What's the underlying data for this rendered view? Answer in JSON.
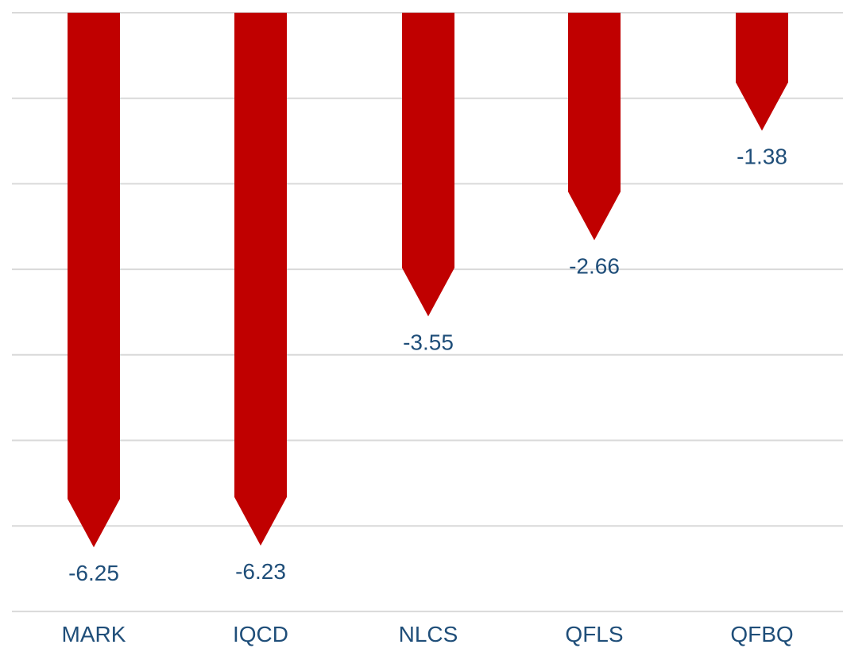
{
  "chart_data": {
    "type": "bar",
    "orientation": "vertical",
    "categories": [
      "MARK",
      "IQCD",
      "NLCS",
      "QFLS",
      "QFBQ"
    ],
    "values": [
      -6.25,
      -6.23,
      -3.55,
      -2.66,
      -1.38
    ],
    "data_labels": [
      "-6.25",
      "-6.23",
      "-3.55",
      "-2.66",
      "-1.38"
    ],
    "title": "",
    "xlabel": "",
    "ylabel": "",
    "ylim": [
      -7,
      0
    ],
    "grid": true,
    "legend": "none",
    "bar_shape": "arrow-down"
  },
  "colors": {
    "bar": "#c00000",
    "label_text": "#1f4e79",
    "gridline": "#d9d9d9"
  }
}
